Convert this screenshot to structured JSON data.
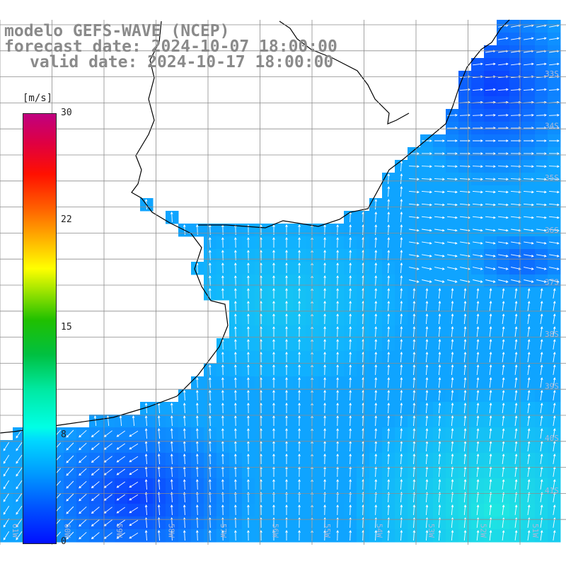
{
  "title": {
    "line1": "modelo GEFS-WAVE (NCEP)",
    "line2": "forecast date: 2024-10-07 18:00:00",
    "line3": "valid date: 2024-10-17 18:00:00"
  },
  "colorbar": {
    "unit": "[m/s]",
    "ticks": [
      "30",
      "22",
      "15",
      "8",
      "0"
    ]
  },
  "axes": {
    "lon_labels": [
      "61W",
      "60W",
      "59W",
      "58W",
      "57W",
      "56W",
      "55W",
      "54W",
      "53W",
      "52W",
      "51W"
    ],
    "lat_labels": [
      "33S",
      "34S",
      "35S",
      "36S",
      "37S",
      "38S",
      "39S",
      "40S",
      "41S"
    ]
  },
  "colors": {
    "land": "#ffffff",
    "coastline": "#000000",
    "grid": "#8c8c8c",
    "arrow": "#ffffff",
    "low_speed": "#0a3cff",
    "mid_speed": "#10b0ff",
    "high_speed": "#20e8e0"
  }
}
